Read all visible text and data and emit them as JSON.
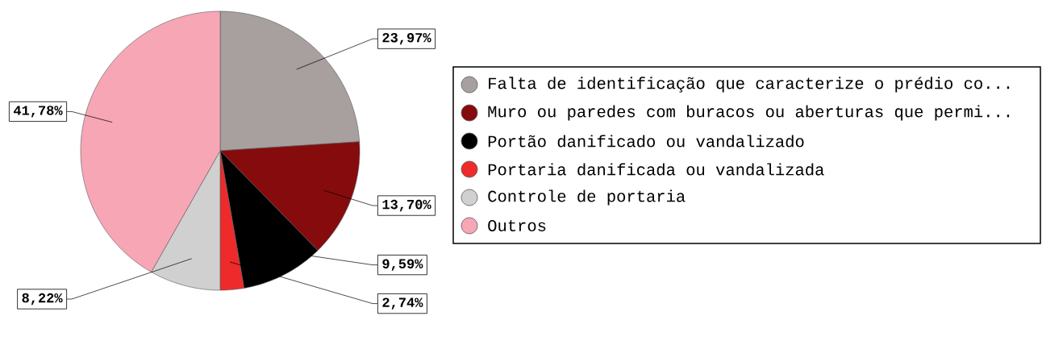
{
  "chart_data": {
    "type": "pie",
    "categories": [
      "Falta de identificação que caracterize o prédio co...",
      "Muro ou paredes com buracos ou aberturas que permi...",
      "Portão danificado ou vandalizado",
      "Portaria danificada ou vandalizada",
      "Controle de portaria",
      "Outros"
    ],
    "values": [
      23.97,
      13.7,
      9.59,
      2.74,
      8.22,
      41.78
    ],
    "colors": [
      "#a89f9f",
      "#850b0d",
      "#000000",
      "#ee2a2a",
      "#d0d0d0",
      "#f7a6b6"
    ],
    "value_labels": [
      "23,97%",
      "13,70%",
      "9,59%",
      "2,74%",
      "8,22%",
      "41,78%"
    ],
    "legend": "right"
  }
}
